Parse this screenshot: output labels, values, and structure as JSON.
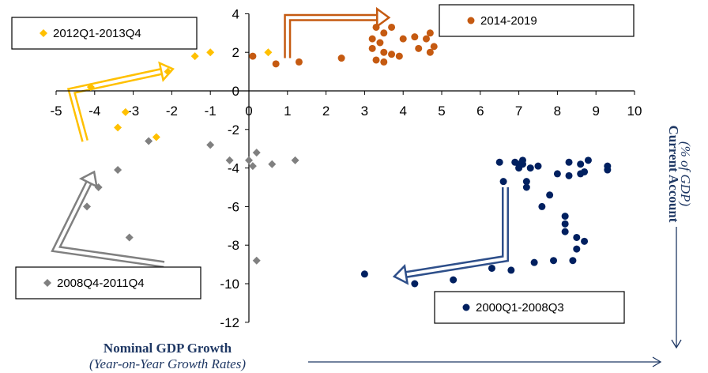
{
  "chart_data": {
    "type": "scatter",
    "xlabel": "Nominal GDP Growth",
    "xlabel_sub": "(Year-on-Year Growth Rates)",
    "ylabel": "Current Account",
    "ylabel_sub": "(% of GDP)",
    "xlim": [
      -5,
      10
    ],
    "ylim": [
      -12,
      4
    ],
    "x_ticks": [
      -5,
      -4,
      -3,
      -2,
      -1,
      0,
      1,
      2,
      3,
      4,
      5,
      6,
      7,
      8,
      9,
      10
    ],
    "y_ticks": [
      4,
      2,
      0,
      -2,
      -4,
      -6,
      -8,
      -10,
      -12
    ],
    "grid": false,
    "series": [
      {
        "name": "2012Q1-2013Q4",
        "color": "#ffc000",
        "marker": "diamond",
        "points": [
          [
            -4.1,
            0.2
          ],
          [
            -3.4,
            -1.9
          ],
          [
            -3.2,
            -1.1
          ],
          [
            -2.4,
            -2.4
          ],
          [
            -2.1,
            1.0
          ],
          [
            -1.4,
            1.8
          ],
          [
            -1.0,
            2.0
          ],
          [
            0.5,
            2.0
          ]
        ]
      },
      {
        "name": "2014-2019",
        "color": "#c55a11",
        "marker": "circle",
        "points": [
          [
            0.1,
            1.8
          ],
          [
            0.7,
            1.4
          ],
          [
            1.3,
            1.5
          ],
          [
            2.4,
            1.7
          ],
          [
            3.2,
            2.7
          ],
          [
            3.2,
            2.2
          ],
          [
            3.3,
            3.3
          ],
          [
            3.3,
            1.6
          ],
          [
            3.4,
            2.5
          ],
          [
            3.5,
            2.0
          ],
          [
            3.5,
            1.5
          ],
          [
            3.5,
            3.0
          ],
          [
            3.7,
            3.3
          ],
          [
            3.7,
            1.9
          ],
          [
            3.9,
            1.8
          ],
          [
            4.0,
            2.7
          ],
          [
            4.3,
            2.8
          ],
          [
            4.4,
            2.2
          ],
          [
            4.6,
            2.7
          ],
          [
            4.7,
            3.0
          ],
          [
            4.7,
            2.0
          ],
          [
            4.8,
            2.3
          ]
        ]
      },
      {
        "name": "2008Q4-2011Q4",
        "color": "#808080",
        "marker": "diamond",
        "points": [
          [
            -4.2,
            -6.0
          ],
          [
            -3.9,
            -5.0
          ],
          [
            -3.4,
            -4.1
          ],
          [
            -3.1,
            -7.6
          ],
          [
            -2.6,
            -2.6
          ],
          [
            -1.0,
            -2.8
          ],
          [
            -0.5,
            -3.6
          ],
          [
            0.0,
            -3.6
          ],
          [
            0.1,
            -3.9
          ],
          [
            0.2,
            -8.8
          ],
          [
            0.2,
            -3.2
          ],
          [
            0.6,
            -3.8
          ],
          [
            1.2,
            -3.6
          ]
        ]
      },
      {
        "name": "2000Q1-2008Q3",
        "color": "#002060",
        "marker": "circle",
        "points": [
          [
            3.0,
            -9.5
          ],
          [
            4.3,
            -10.0
          ],
          [
            5.3,
            -9.8
          ],
          [
            6.3,
            -9.2
          ],
          [
            6.5,
            -3.7
          ],
          [
            6.6,
            -4.7
          ],
          [
            6.8,
            -9.3
          ],
          [
            6.9,
            -3.7
          ],
          [
            7.0,
            -3.8
          ],
          [
            7.0,
            -4.0
          ],
          [
            7.1,
            -3.8
          ],
          [
            7.1,
            -3.6
          ],
          [
            7.2,
            -5.0
          ],
          [
            7.2,
            -4.7
          ],
          [
            7.3,
            -4.0
          ],
          [
            7.4,
            -8.9
          ],
          [
            7.5,
            -3.9
          ],
          [
            7.6,
            -6.0
          ],
          [
            7.8,
            -5.4
          ],
          [
            7.9,
            -8.8
          ],
          [
            8.0,
            -4.3
          ],
          [
            8.2,
            -6.5
          ],
          [
            8.2,
            -6.9
          ],
          [
            8.2,
            -7.3
          ],
          [
            8.3,
            -4.4
          ],
          [
            8.3,
            -3.7
          ],
          [
            8.4,
            -8.8
          ],
          [
            8.5,
            -7.6
          ],
          [
            8.5,
            -8.2
          ],
          [
            8.6,
            -4.3
          ],
          [
            8.6,
            -3.8
          ],
          [
            8.7,
            -4.2
          ],
          [
            8.7,
            -7.8
          ],
          [
            8.8,
            -3.6
          ],
          [
            9.3,
            -3.9
          ],
          [
            9.3,
            -4.1
          ]
        ]
      }
    ]
  }
}
